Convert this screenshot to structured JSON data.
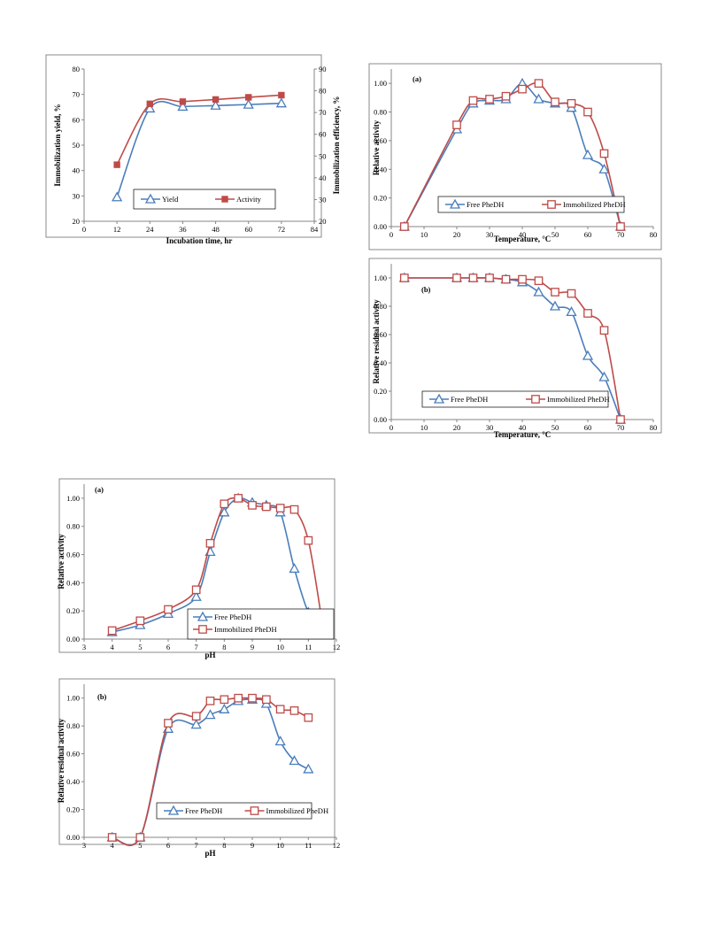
{
  "colors": {
    "yield": "#4a7ebb",
    "activity": "#be4b48",
    "free": "#4a7ebb",
    "immobilized": "#be4b48",
    "axis": "#868686",
    "frame": "#7f7f7f",
    "text": "#000000"
  },
  "chart_data": [
    {
      "type": "line",
      "title": "",
      "panel_label": "",
      "xlabel": "Incubation time, hr",
      "ylabel": "Immobilization yield, %",
      "y2label": "Immobilization efficiency, %",
      "xlim": [
        0,
        84
      ],
      "ylim": [
        20,
        80
      ],
      "y2lim": [
        20,
        90
      ],
      "x_ticks": [
        "0",
        "12",
        "24",
        "36",
        "48",
        "60",
        "72",
        "84"
      ],
      "y_ticks": [
        "20",
        "30",
        "40",
        "50",
        "60",
        "70",
        "80"
      ],
      "y2_ticks": [
        "20",
        "30",
        "40",
        "50",
        "60",
        "70",
        "80",
        "90"
      ],
      "legend_position": "bottom-center",
      "grid": false,
      "series": [
        {
          "name": "Yield",
          "marker": "triangle",
          "axis": "left",
          "color_key": "yield",
          "x": [
            12,
            24,
            36,
            48,
            60,
            72
          ],
          "y": [
            29.5,
            64.5,
            65.2,
            65.6,
            66.0,
            66.5
          ]
        },
        {
          "name": "Activity",
          "marker": "square-filled",
          "axis": "right",
          "color_key": "activity",
          "x": [
            12,
            24,
            36,
            48,
            60,
            72
          ],
          "y": [
            46,
            74,
            75,
            76,
            77,
            78
          ]
        }
      ]
    },
    {
      "type": "line",
      "title": "",
      "panel_label": "(a)",
      "xlabel": "Temperature, °C",
      "ylabel": "Relative activity",
      "xlim": [
        0,
        80
      ],
      "ylim": [
        0,
        1.1
      ],
      "x_ticks": [
        "0",
        "10",
        "20",
        "30",
        "40",
        "50",
        "60",
        "70",
        "80"
      ],
      "y_ticks": [
        "0.00",
        "0.20",
        "0.40",
        "0.60",
        "0.80",
        "1.00"
      ],
      "legend_position": "bottom-center",
      "grid": false,
      "series": [
        {
          "name": "Free PheDH",
          "marker": "triangle",
          "color_key": "free",
          "x": [
            4,
            20,
            25,
            30,
            35,
            40,
            45,
            50,
            55,
            60,
            65,
            70
          ],
          "y": [
            0.0,
            0.68,
            0.86,
            0.88,
            0.89,
            1.0,
            0.89,
            0.86,
            0.83,
            0.5,
            0.4,
            0.0
          ]
        },
        {
          "name": "Immobilized PheDH",
          "marker": "square-open",
          "color_key": "immobilized",
          "x": [
            4,
            20,
            25,
            30,
            35,
            40,
            45,
            50,
            55,
            60,
            65,
            70
          ],
          "y": [
            0.0,
            0.71,
            0.88,
            0.89,
            0.91,
            0.96,
            1.0,
            0.87,
            0.86,
            0.8,
            0.51,
            0.0
          ]
        }
      ]
    },
    {
      "type": "line",
      "title": "",
      "panel_label": "(b)",
      "xlabel": "Temperature, °C",
      "ylabel": "Relative residual activity",
      "xlim": [
        0,
        80
      ],
      "ylim": [
        0,
        1.1
      ],
      "x_ticks": [
        "0",
        "10",
        "20",
        "30",
        "40",
        "50",
        "60",
        "70",
        "80"
      ],
      "y_ticks": [
        "0.00",
        "0.20",
        "0.40",
        "0.60",
        "0.80",
        "1.00"
      ],
      "legend_position": "bottom-center",
      "grid": false,
      "series": [
        {
          "name": "Free PheDH",
          "marker": "triangle",
          "color_key": "free",
          "x": [
            4,
            20,
            25,
            30,
            35,
            40,
            45,
            50,
            55,
            60,
            65,
            70
          ],
          "y": [
            1.0,
            1.0,
            1.0,
            1.0,
            0.99,
            0.97,
            0.9,
            0.8,
            0.76,
            0.45,
            0.3,
            0.0
          ]
        },
        {
          "name": "Immobilized PheDH",
          "marker": "square-open",
          "color_key": "immobilized",
          "x": [
            4,
            20,
            25,
            30,
            35,
            40,
            45,
            50,
            55,
            60,
            65,
            70
          ],
          "y": [
            1.0,
            1.0,
            1.0,
            1.0,
            0.99,
            0.99,
            0.98,
            0.9,
            0.89,
            0.75,
            0.63,
            0.0
          ]
        }
      ]
    },
    {
      "type": "line",
      "title": "",
      "panel_label": "(a)",
      "xlabel": "pH",
      "ylabel": "Relative activity",
      "xlim": [
        3,
        12
      ],
      "ylim": [
        0,
        1.1
      ],
      "x_ticks": [
        "3",
        "4",
        "5",
        "6",
        "7",
        "8",
        "9",
        "10",
        "11",
        "12"
      ],
      "y_ticks": [
        "0.00",
        "0.20",
        "0.40",
        "0.60",
        "0.80",
        "1.00"
      ],
      "legend_position": "bottom-right",
      "grid": false,
      "series": [
        {
          "name": "Free PheDH",
          "marker": "triangle",
          "color_key": "free",
          "x": [
            4,
            5,
            6,
            7,
            7.5,
            8,
            8.5,
            9,
            9.5,
            10,
            10.5,
            11,
            11.5
          ],
          "y": [
            0.05,
            0.1,
            0.18,
            0.3,
            0.62,
            0.9,
            1.0,
            0.97,
            0.95,
            0.9,
            0.5,
            0.19,
            0.08
          ]
        },
        {
          "name": "Immobilized PheDH",
          "marker": "square-open",
          "color_key": "immobilized",
          "x": [
            4,
            5,
            6,
            7,
            7.5,
            8,
            8.5,
            9,
            9.5,
            10,
            10.5,
            11,
            11.5
          ],
          "y": [
            0.06,
            0.13,
            0.21,
            0.35,
            0.68,
            0.96,
            1.0,
            0.95,
            0.94,
            0.93,
            0.92,
            0.7,
            0.11
          ]
        }
      ]
    },
    {
      "type": "line",
      "title": "",
      "panel_label": "(b)",
      "xlabel": "pH",
      "ylabel": "Relative residual activity",
      "xlim": [
        3,
        12
      ],
      "ylim": [
        0,
        1.1
      ],
      "x_ticks": [
        "3",
        "4",
        "5",
        "6",
        "7",
        "8",
        "9",
        "10",
        "11",
        "12"
      ],
      "y_ticks": [
        "0.00",
        "0.20",
        "0.40",
        "0.60",
        "0.80",
        "1.00"
      ],
      "legend_position": "bottom-center",
      "grid": false,
      "series": [
        {
          "name": "Free PheDH",
          "marker": "triangle",
          "color_key": "free",
          "x": [
            4,
            5,
            6,
            7,
            7.5,
            8,
            8.5,
            9,
            9.5,
            10,
            10.5,
            11
          ],
          "y": [
            0.0,
            0.0,
            0.78,
            0.81,
            0.88,
            0.92,
            0.98,
            0.99,
            0.96,
            0.69,
            0.55,
            0.49
          ]
        },
        {
          "name": "Immobilized PheDH",
          "marker": "square-open",
          "color_key": "immobilized",
          "x": [
            4,
            5,
            6,
            7,
            7.5,
            8,
            8.5,
            9,
            9.5,
            10,
            10.5,
            11
          ],
          "y": [
            0.0,
            0.0,
            0.82,
            0.87,
            0.98,
            0.99,
            1.0,
            1.0,
            0.99,
            0.92,
            0.91,
            0.86
          ]
        }
      ]
    }
  ]
}
